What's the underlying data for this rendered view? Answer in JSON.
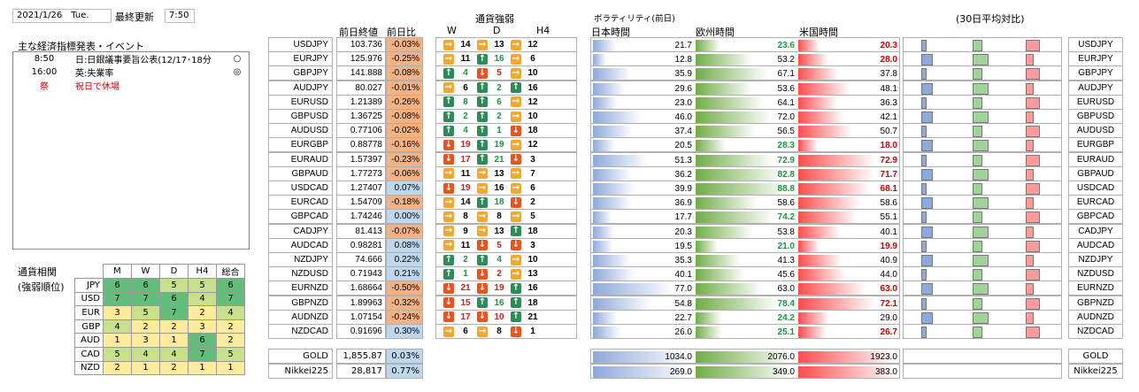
{
  "header": {
    "date": "2021/1/26　Tue.",
    "update_label": "最終更新",
    "update_time": "7:50"
  },
  "events": {
    "title": "主な経済指標発表・イベント",
    "rows": [
      {
        "time": "",
        "text": "",
        "mark": ""
      },
      {
        "time": "8:50",
        "text": "日:日銀議事要旨公表(12/17･18分",
        "mark": "○"
      },
      {
        "time": "16:00",
        "text": "英:失業率",
        "mark": "◎"
      },
      {
        "time": "",
        "text": "",
        "mark": ""
      },
      {
        "time": "",
        "text": "",
        "mark": ""
      },
      {
        "time": "",
        "text": "",
        "mark": ""
      },
      {
        "time": "",
        "text": "",
        "mark": ""
      },
      {
        "time": "",
        "text": "",
        "mark": ""
      },
      {
        "time": "",
        "text": "",
        "mark": ""
      },
      {
        "time": "",
        "text": "",
        "mark": ""
      },
      {
        "time": "",
        "text": "",
        "mark": ""
      },
      {
        "time": "祭",
        "text": "祝日で休場",
        "mark": ""
      },
      {
        "time": "",
        "text": "",
        "mark": ""
      },
      {
        "time": "",
        "text": "",
        "mark": ""
      },
      {
        "time": "",
        "text": "",
        "mark": ""
      }
    ]
  },
  "ranking": {
    "title1": "通貨相関",
    "title2": "(強弱順位)",
    "cols": [
      "M",
      "W",
      "D",
      "H4",
      "総合"
    ],
    "rows": [
      {
        "ccy": "JPY",
        "vals": [
          6,
          6,
          5,
          5,
          6
        ]
      },
      {
        "ccy": "USD",
        "vals": [
          7,
          7,
          6,
          4,
          7
        ]
      },
      {
        "ccy": "EUR",
        "vals": [
          3,
          5,
          7,
          2,
          4
        ]
      },
      {
        "ccy": "GBP",
        "vals": [
          4,
          2,
          2,
          3,
          2
        ]
      },
      {
        "ccy": "AUD",
        "vals": [
          1,
          3,
          1,
          6,
          2
        ]
      },
      {
        "ccy": "CAD",
        "vals": [
          5,
          4,
          4,
          7,
          5
        ]
      },
      {
        "ccy": "NZD",
        "vals": [
          2,
          1,
          2,
          1,
          1
        ]
      }
    ]
  },
  "colors": {
    "rank_hi": "#63be7b",
    "rank_mid": "#c8e08c",
    "rank_lo": "#ffeb9c",
    "up": "#2e8b57",
    "down": "#e8541e",
    "flat": "#f0a830",
    "neg_bg": "#f4b183",
    "pos_bg": "#bdd7ee",
    "jp_bar": "#8ea9db",
    "eu_bar": "#70ad47",
    "us_bar": "#ff4d4d"
  },
  "columns": {
    "prev_close": "前日終値",
    "change": "前日比",
    "strength": "通貨強弱",
    "w": "W",
    "d": "D",
    "h4": "H4",
    "volatility": "ボラティリティ(前日)",
    "japan": "日本時間",
    "europe": "欧州時間",
    "us": "米国時間",
    "avg": "(30日平均対比)"
  },
  "pairs": [
    {
      "sym": "USDJPY",
      "close": "103.736",
      "chg": "-0.03%",
      "w": [
        "flat",
        14,
        "flat",
        13
      ],
      "wv": [
        "l",
        "l"
      ],
      "d_dir": "flat",
      "d_num": 13,
      "h4_dir": "flat",
      "h4_num": 12,
      "jp": 21.7,
      "eu": 23.6,
      "us": 20.3,
      "ehi": true,
      "uhi": true
    },
    {
      "sym": "EURJPY",
      "close": "125.976",
      "chg": "-0.25%",
      "w": [
        "flat",
        11,
        "up",
        16
      ],
      "h4_dir": "flat",
      "h4_num": 6,
      "jp": 12.8,
      "eu": 53.2,
      "us": 28.0,
      "ehi": false,
      "uhi": true
    },
    {
      "sym": "GBPJPY",
      "close": "141.888",
      "chg": "-0.08%",
      "w": [
        "up",
        4,
        "down",
        5
      ],
      "h4_dir": "flat",
      "h4_num": 10,
      "jp": 35.9,
      "eu": 67.1,
      "us": 37.8,
      "ehi": false,
      "uhi": false
    },
    {
      "sym": "AUDJPY",
      "close": "80.027",
      "chg": "-0.01%",
      "w": [
        "flat",
        6,
        "up",
        2
      ],
      "h4_dir": "up",
      "h4_num": 16,
      "jp": 29.6,
      "eu": 53.6,
      "us": 48.1,
      "ehi": false,
      "uhi": false
    },
    {
      "sym": "EURUSD",
      "close": "1.21389",
      "chg": "-0.26%",
      "w": [
        "up",
        8,
        "up",
        6
      ],
      "h4_dir": "flat",
      "h4_num": 12,
      "jp": 23.0,
      "eu": 64.1,
      "us": 36.3,
      "ehi": false,
      "uhi": false
    },
    {
      "sym": "GBPUSD",
      "close": "1.36725",
      "chg": "-0.08%",
      "w": [
        "up",
        2,
        "up",
        2
      ],
      "h4_dir": "flat",
      "h4_num": 10,
      "jp": 46.0,
      "eu": 72.0,
      "us": 42.1,
      "ehi": false,
      "uhi": false
    },
    {
      "sym": "AUDUSD",
      "close": "0.77106",
      "chg": "-0.02%",
      "w": [
        "up",
        4,
        "up",
        1
      ],
      "h4_dir": "down",
      "h4_num": 18,
      "jp": 37.4,
      "eu": 56.5,
      "us": 50.7,
      "ehi": false,
      "uhi": false
    },
    {
      "sym": "EURGBP",
      "close": "0.88778",
      "chg": "-0.16%",
      "w": [
        "down",
        19,
        "up",
        19
      ],
      "h4_dir": "flat",
      "h4_num": 12,
      "jp": 20.5,
      "eu": 28.3,
      "us": 18.0,
      "ehi": true,
      "uhi": true
    },
    {
      "sym": "EURAUD",
      "close": "1.57397",
      "chg": "-0.23%",
      "w": [
        "down",
        17,
        "up",
        21
      ],
      "h4_dir": "down",
      "h4_num": 3,
      "jp": 51.3,
      "eu": 72.9,
      "us": 72.9,
      "ehi": true,
      "uhi": true
    },
    {
      "sym": "GBPAUD",
      "close": "1.77273",
      "chg": "-0.06%",
      "w": [
        "flat",
        11,
        "flat",
        13
      ],
      "h4_dir": "flat",
      "h4_num": 7,
      "jp": 36.2,
      "eu": 82.8,
      "us": 71.7,
      "ehi": true,
      "uhi": true
    },
    {
      "sym": "USDCAD",
      "close": "1.27407",
      "chg": "0.07%",
      "w": [
        "down",
        19,
        "flat",
        16
      ],
      "h4_dir": "flat",
      "h4_num": 6,
      "jp": 39.9,
      "eu": 88.8,
      "us": 68.1,
      "ehi": true,
      "uhi": true
    },
    {
      "sym": "EURCAD",
      "close": "1.54709",
      "chg": "-0.18%",
      "w": [
        "flat",
        14,
        "up",
        18
      ],
      "h4_dir": "down",
      "h4_num": 2,
      "jp": 36.9,
      "eu": 58.6,
      "us": 58.6,
      "ehi": false,
      "uhi": false
    },
    {
      "sym": "GBPCAD",
      "close": "1.74246",
      "chg": "0.00%",
      "w": [
        "flat",
        8,
        "flat",
        8
      ],
      "h4_dir": "flat",
      "h4_num": 5,
      "jp": 17.7,
      "eu": 74.2,
      "us": 55.1,
      "ehi": true,
      "uhi": false
    },
    {
      "sym": "CADJPY",
      "close": "81.413",
      "chg": "-0.07%",
      "w": [
        "flat",
        9,
        "flat",
        13
      ],
      "h4_dir": "up",
      "h4_num": 18,
      "jp": 20.3,
      "eu": 53.8,
      "us": 40.1,
      "ehi": false,
      "uhi": false
    },
    {
      "sym": "AUDCAD",
      "close": "0.98281",
      "chg": "0.08%",
      "w": [
        "flat",
        11,
        "down",
        5
      ],
      "h4_dir": "down",
      "h4_num": 3,
      "jp": 19.5,
      "eu": 21.0,
      "us": 19.9,
      "ehi": true,
      "uhi": true
    },
    {
      "sym": "NZDJPY",
      "close": "74.666",
      "chg": "0.22%",
      "w": [
        "up",
        2,
        "up",
        4
      ],
      "h4_dir": "flat",
      "h4_num": 10,
      "jp": 35.3,
      "eu": 41.3,
      "us": 40.9,
      "ehi": false,
      "uhi": false
    },
    {
      "sym": "NZDUSD",
      "close": "0.71943",
      "chg": "0.21%",
      "w": [
        "up",
        1,
        "down",
        2
      ],
      "h4_dir": "flat",
      "h4_num": 13,
      "jp": 40.1,
      "eu": 45.6,
      "us": 44.0,
      "ehi": false,
      "uhi": false
    },
    {
      "sym": "EURNZD",
      "close": "1.68664",
      "chg": "-0.50%",
      "w": [
        "down",
        21,
        "down",
        19
      ],
      "h4_dir": "up",
      "h4_num": 16,
      "jp": 77.0,
      "eu": 63.0,
      "us": 63.0,
      "ehi": false,
      "uhi": true
    },
    {
      "sym": "GBPNZD",
      "close": "1.89963",
      "chg": "-0.32%",
      "w": [
        "down",
        15,
        "up",
        16
      ],
      "h4_dir": "up",
      "h4_num": 18,
      "jp": 54.8,
      "eu": 78.4,
      "us": 72.1,
      "ehi": true,
      "uhi": true
    },
    {
      "sym": "AUDNZD",
      "close": "1.07154",
      "chg": "-0.24%",
      "w": [
        "down",
        17,
        "down",
        10
      ],
      "h4_dir": "up",
      "h4_num": 21,
      "jp": 22.7,
      "eu": 24.2,
      "us": 29.0,
      "ehi": true,
      "uhi": false
    },
    {
      "sym": "NZDCAD",
      "close": "0.91696",
      "chg": "0.30%",
      "w": [
        "flat",
        6,
        "flat",
        8
      ],
      "h4_dir": "down",
      "h4_num": 1,
      "jp": 26.0,
      "eu": 25.1,
      "us": 26.7,
      "ehi": true,
      "uhi": true
    }
  ],
  "extra": [
    {
      "sym": "GOLD",
      "close": "1,855.87",
      "chg": "0.03%",
      "jp": "1034.0",
      "eu": "2076.0",
      "us": "1923.0"
    },
    {
      "sym": "Nikkei225",
      "close": "28,817",
      "chg": "0.77%",
      "jp": "269.0",
      "eu": "349.0",
      "us": "383.0"
    }
  ]
}
